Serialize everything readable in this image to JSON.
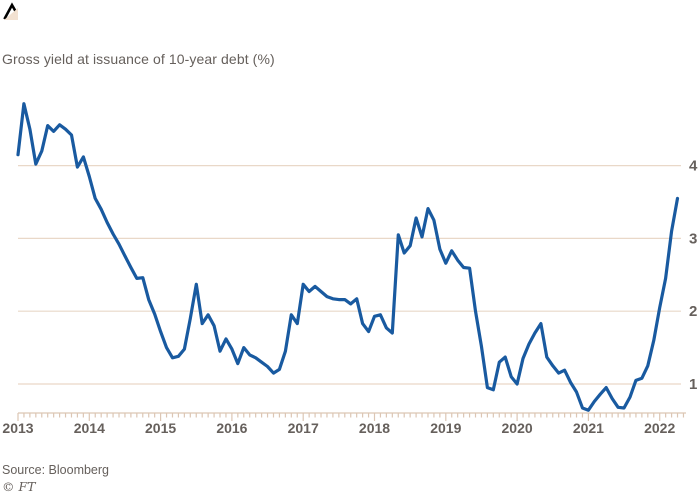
{
  "header": {
    "title": "Gross yield at issuance of 10-year debt (%)"
  },
  "footer": {
    "source": "Source: Bloomberg",
    "copyright": "© FT"
  },
  "colors": {
    "line": "#195aa0",
    "gridline": "#e9d8c8",
    "axis": "#dcc6b4",
    "text": "#66605c",
    "mark": "#000000",
    "corner_triangle": "#f2e1d1",
    "background": "#ffffff"
  },
  "icons": {
    "top_left": "trend-zigzag-mark",
    "bottom_right": "resize-corner-triangle"
  },
  "chart_data": {
    "type": "line",
    "title": "Gross yield at issuance of 10-year debt (%)",
    "xlabel": "",
    "ylabel": "",
    "grid": "horizontal",
    "legend": "none",
    "x_start": "2013-01",
    "x_interval": "month",
    "x_axis_end": "2022-06",
    "x_tick_labels": [
      "2013",
      "2014",
      "2015",
      "2016",
      "2017",
      "2018",
      "2019",
      "2020",
      "2021",
      "2022"
    ],
    "y_tick_labels": [
      "4",
      "3",
      "2",
      "1"
    ],
    "y_gridlines": [
      4,
      3,
      2,
      1
    ],
    "ylim": [
      0.6,
      5.0
    ],
    "series": [
      {
        "name": "10-year gross yield at issuance (%)",
        "values": [
          4.15,
          4.85,
          4.5,
          4.02,
          4.2,
          4.55,
          4.47,
          4.56,
          4.5,
          4.42,
          3.98,
          4.12,
          3.85,
          3.55,
          3.4,
          3.22,
          3.06,
          2.92,
          2.76,
          2.6,
          2.45,
          2.46,
          2.16,
          1.96,
          1.72,
          1.5,
          1.36,
          1.38,
          1.48,
          1.9,
          2.37,
          1.83,
          1.95,
          1.8,
          1.45,
          1.62,
          1.48,
          1.28,
          1.5,
          1.4,
          1.36,
          1.3,
          1.24,
          1.15,
          1.2,
          1.45,
          1.95,
          1.83,
          2.37,
          2.27,
          2.34,
          2.27,
          2.2,
          2.17,
          2.16,
          2.16,
          2.1,
          2.17,
          1.83,
          1.72,
          1.93,
          1.95,
          1.77,
          1.7,
          3.05,
          2.8,
          2.9,
          3.28,
          3.02,
          3.41,
          3.25,
          2.85,
          2.66,
          2.83,
          2.7,
          2.6,
          2.59,
          2.0,
          1.52,
          0.95,
          0.92,
          1.3,
          1.37,
          1.1,
          1.0,
          1.35,
          1.55,
          1.7,
          1.83,
          1.37,
          1.25,
          1.15,
          1.19,
          1.02,
          0.89,
          0.67,
          0.64,
          0.76,
          0.86,
          0.95,
          0.8,
          0.68,
          0.67,
          0.82,
          1.05,
          1.08,
          1.25,
          1.6,
          2.05,
          2.45,
          3.1,
          3.55
        ]
      }
    ]
  }
}
